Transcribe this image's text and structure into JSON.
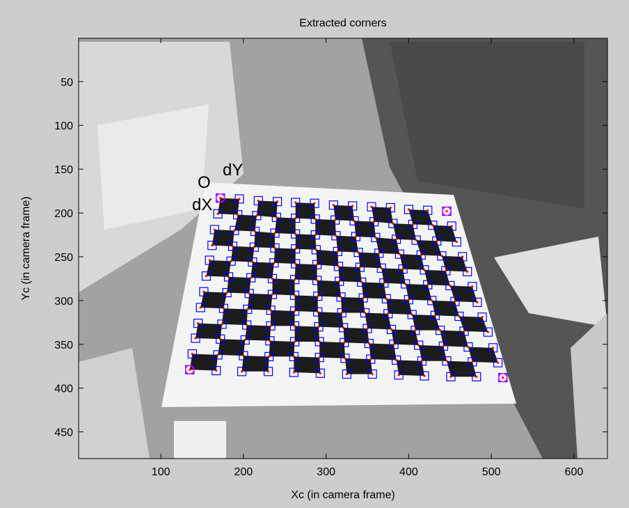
{
  "chart_data": {
    "type": "scatter",
    "title": "Extracted corners",
    "xlabel": "Xc (in camera frame)",
    "ylabel": "Yc (in camera frame)",
    "xlim": [
      0.5,
      640.5
    ],
    "ylim": [
      0.5,
      480.5
    ],
    "y_direction": "reverse",
    "xticks": [
      100,
      200,
      300,
      400,
      500,
      600
    ],
    "yticks": [
      50,
      100,
      150,
      200,
      250,
      300,
      350,
      400,
      450
    ],
    "grid": false,
    "marker_color": "#0000ff",
    "center_color": "#ff0000",
    "annotations": {
      "origin": "O",
      "dx": "dX",
      "dy": "dY",
      "origin_color": "#ff00ff",
      "axis_color": "#00dd00"
    },
    "corners": {
      "color": "#ff00ff",
      "x": [
        172,
        446,
        135,
        514
      ],
      "y": [
        183,
        198,
        379,
        388
      ]
    },
    "series": [
      {
        "x": [
          172,
          195,
          218,
          241,
          263,
          286,
          309,
          332,
          355,
          378,
          400,
          423,
          446
        ],
        "y": [
          183,
          184,
          186,
          187,
          188,
          189,
          191,
          192,
          193,
          194,
          196,
          197,
          198
        ]
      },
      {
        "x": [
          169,
          193,
          216,
          240,
          263,
          287,
          311,
          334,
          358,
          381,
          405,
          429,
          452
        ],
        "y": [
          201,
          202,
          203,
          205,
          206,
          207,
          208,
          209,
          210,
          212,
          213,
          214,
          215
        ]
      },
      {
        "x": [
          165,
          189,
          214,
          238,
          263,
          287,
          312,
          336,
          360,
          385,
          409,
          434,
          458
        ],
        "y": [
          219,
          220,
          221,
          223,
          224,
          225,
          226,
          227,
          228,
          230,
          231,
          232,
          233
        ]
      },
      {
        "x": [
          162,
          187,
          213,
          238,
          263,
          288,
          314,
          339,
          364,
          389,
          415,
          440,
          465
        ],
        "y": [
          237,
          238,
          239,
          240,
          241,
          242,
          244,
          245,
          246,
          247,
          248,
          249,
          250
        ]
      },
      {
        "x": [
          159,
          185,
          211,
          237,
          263,
          289,
          315,
          341,
          367,
          393,
          419,
          445,
          471
        ],
        "y": [
          254,
          255,
          256,
          257,
          258,
          259,
          261,
          262,
          263,
          264,
          265,
          266,
          267
        ]
      },
      {
        "x": [
          155,
          182,
          209,
          235,
          262,
          289,
          316,
          343,
          370,
          396,
          423,
          450,
          477
        ],
        "y": [
          272,
          273,
          274,
          275,
          276,
          277,
          278,
          279,
          280,
          281,
          282,
          283,
          284
        ]
      },
      {
        "x": [
          152,
          180,
          207,
          235,
          262,
          290,
          318,
          345,
          373,
          400,
          428,
          456,
          483
        ],
        "y": [
          290,
          291,
          292,
          293,
          294,
          295,
          296,
          297,
          298,
          299,
          300,
          301,
          302
        ]
      },
      {
        "x": [
          148,
          176,
          205,
          233,
          262,
          290,
          319,
          347,
          375,
          404,
          432,
          461,
          489
        ],
        "y": [
          308,
          309,
          310,
          311,
          312,
          313,
          314,
          314,
          315,
          316,
          317,
          318,
          319
        ]
      },
      {
        "x": [
          145,
          174,
          204,
          233,
          262,
          291,
          321,
          350,
          379,
          408,
          438,
          467,
          496
        ],
        "y": [
          326,
          327,
          328,
          329,
          329,
          330,
          331,
          332,
          333,
          334,
          334,
          335,
          336
        ]
      },
      {
        "x": [
          142,
          172,
          202,
          232,
          262,
          292,
          322,
          352,
          382,
          412,
          442,
          472,
          502
        ],
        "y": [
          343,
          344,
          345,
          346,
          347,
          347,
          348,
          349,
          350,
          351,
          352,
          353,
          354
        ]
      },
      {
        "x": [
          138,
          169,
          200,
          231,
          261,
          292,
          323,
          354,
          385,
          416,
          446,
          477,
          508
        ],
        "y": [
          361,
          362,
          363,
          364,
          364,
          365,
          366,
          367,
          368,
          369,
          369,
          370,
          371
        ]
      },
      {
        "x": [
          135,
          167,
          198,
          230,
          261,
          293,
          325,
          356,
          388,
          419,
          451,
          482,
          514
        ],
        "y": [
          379,
          380,
          381,
          381,
          382,
          383,
          384,
          384,
          385,
          386,
          387,
          387,
          388
        ]
      }
    ]
  }
}
